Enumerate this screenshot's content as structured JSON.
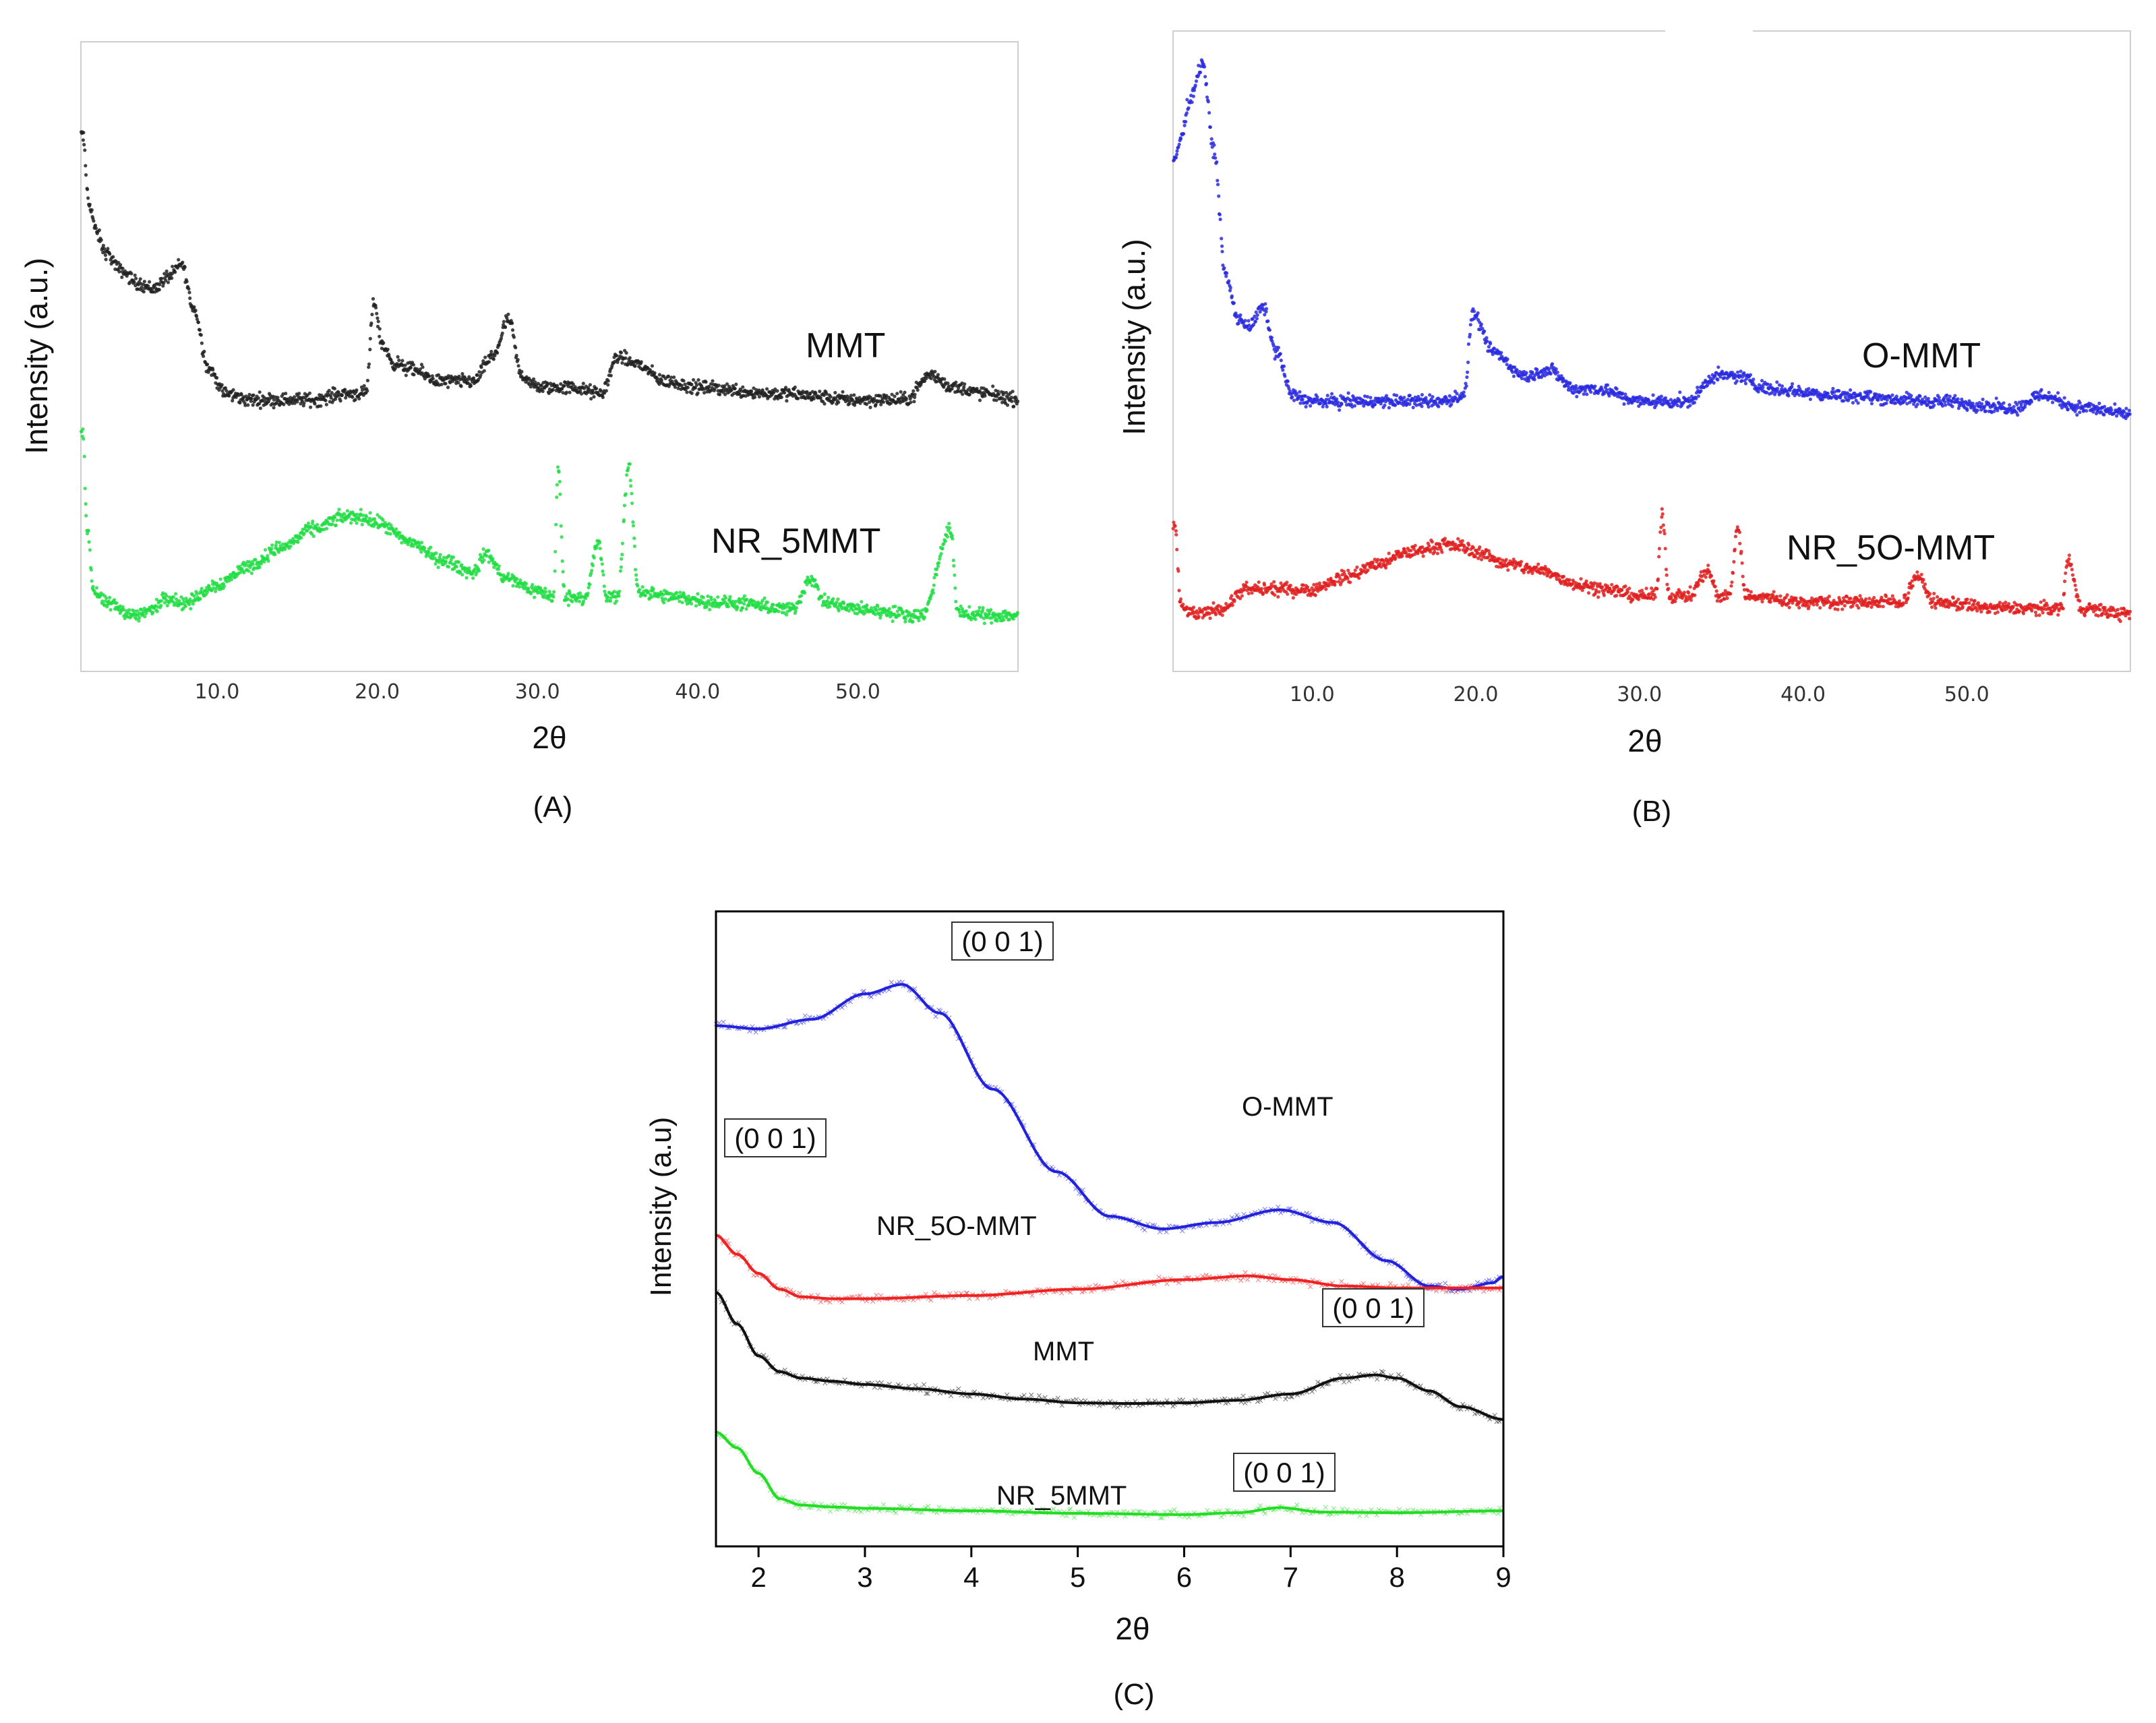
{
  "chart_data": [
    {
      "type": "scatter",
      "panel_label": "(A)",
      "xlabel": "2θ",
      "ylabel": "Intensity (a.u.)",
      "xlim": [
        1.5,
        60
      ],
      "ylim": [
        0,
        100
      ],
      "x_ticks": [
        "10.0",
        "20.0",
        "30.0",
        "40.0",
        "50.0"
      ],
      "series": [
        {
          "name": "MMT",
          "color": "#222222",
          "x": [
            1.6,
            2.0,
            2.5,
            3.0,
            4.0,
            5.0,
            6.0,
            7.0,
            7.8,
            8.5,
            9.5,
            10.5,
            12,
            14,
            16,
            18,
            19.3,
            19.8,
            20.3,
            21,
            22,
            24,
            26,
            27.2,
            28.2,
            29,
            30,
            32,
            34,
            35,
            36,
            38,
            40,
            45,
            50,
            53,
            54.5,
            56,
            58,
            60
          ],
          "y": [
            86,
            75,
            70,
            67,
            64,
            62,
            61,
            63,
            65,
            58,
            48,
            44,
            43,
            43,
            43,
            44,
            44,
            59,
            52,
            49,
            48,
            46,
            46,
            50,
            56,
            47,
            45,
            45,
            44,
            50,
            49,
            46,
            45,
            44,
            43,
            43,
            47,
            45,
            44,
            43
          ]
        },
        {
          "name": "NR_5MMT",
          "color": "#22dd44",
          "x": [
            1.6,
            1.9,
            2.3,
            3,
            5,
            6,
            6.8,
            8,
            10,
            12,
            14,
            16,
            18,
            19,
            20,
            22,
            24,
            26,
            26.8,
            28,
            30,
            31.0,
            31.3,
            31.7,
            33,
            33.8,
            34.3,
            35,
            35.7,
            36.3,
            38,
            42,
            46,
            47,
            48,
            50,
            54,
            55.8,
            56.2,
            57,
            60
          ],
          "y": [
            38,
            22,
            12,
            10,
            8,
            9,
            11,
            10,
            13,
            16,
            19,
            22,
            24,
            24,
            23,
            20,
            17,
            15,
            18,
            14,
            12,
            11,
            32,
            11,
            11,
            20,
            11,
            11,
            32,
            12,
            11,
            10,
            9,
            14,
            10,
            9,
            8,
            22,
            9,
            8,
            8
          ]
        }
      ]
    },
    {
      "type": "scatter",
      "panel_label": "(B)",
      "xlabel": "2θ",
      "ylabel": "Intensity (a.u.)",
      "xlim": [
        1.5,
        60
      ],
      "ylim": [
        0,
        100
      ],
      "x_ticks": [
        "10.0",
        "20.0",
        "30.0",
        "40.0",
        "50.0"
      ],
      "series": [
        {
          "name": "O-MMT",
          "color": "#2a2ae0",
          "x": [
            1.5,
            2.0,
            2.5,
            3.3,
            4.0,
            4.7,
            5.5,
            6.2,
            7.0,
            7.8,
            8.8,
            10,
            14,
            18,
            19.3,
            19.8,
            21,
            23,
            24.5,
            26,
            27.5,
            30,
            33,
            34.6,
            36,
            38,
            42,
            48,
            53,
            54.5,
            57,
            60
          ],
          "y": [
            80,
            84,
            90,
            96,
            82,
            62,
            55,
            54,
            57,
            50,
            43,
            42,
            42,
            42,
            43,
            56,
            50,
            46,
            47,
            44,
            44,
            42,
            42,
            46,
            46,
            44,
            43,
            42,
            41,
            43,
            41,
            40
          ]
        },
        {
          "name": "NR_5O-MMT",
          "color": "#e02020",
          "x": [
            1.6,
            2.0,
            3.0,
            4.5,
            6.0,
            8,
            10,
            12,
            14,
            16,
            18,
            19,
            20,
            22,
            24,
            26,
            28,
            30,
            31.0,
            31.4,
            31.8,
            33,
            34.2,
            34.8,
            35.5,
            36.0,
            36.5,
            40,
            46,
            47,
            48,
            52,
            55.8,
            56.2,
            57,
            60
          ],
          "y": [
            22,
            9,
            8,
            9,
            12,
            12,
            12,
            14,
            16,
            18,
            19,
            19,
            18,
            16,
            15,
            13,
            12,
            11,
            11,
            24,
            11,
            11,
            15,
            11,
            11,
            22,
            11,
            10,
            10,
            14,
            10,
            9,
            9,
            17,
            9,
            8
          ]
        }
      ]
    },
    {
      "type": "line",
      "panel_label": "(C)",
      "xlabel": "2θ",
      "ylabel": "Intensity (a.u)",
      "xlim": [
        1.6,
        9
      ],
      "ylim": [
        0,
        100
      ],
      "x_ticks": [
        "2",
        "3",
        "4",
        "5",
        "6",
        "7",
        "8",
        "9"
      ],
      "peak_label": "(0 0 1)",
      "series": [
        {
          "name": "O-MMT",
          "color": "#2222dd",
          "x": [
            1.6,
            2.0,
            2.5,
            3.0,
            3.35,
            3.7,
            4.2,
            4.8,
            5.3,
            5.8,
            6.3,
            6.9,
            7.4,
            7.9,
            8.3,
            8.6,
            8.9,
            9.0
          ],
          "y": [
            82,
            81.5,
            83,
            87,
            88.5,
            84,
            72,
            59,
            52,
            50,
            51,
            53,
            51,
            45,
            41,
            40.5,
            41.5,
            42.5
          ]
        },
        {
          "name": "NR_5O-MMT",
          "color": "#ee2222",
          "x": [
            1.6,
            1.8,
            2.0,
            2.2,
            2.4,
            2.7,
            3.0,
            4.0,
            5.0,
            6.0,
            6.6,
            7.0,
            7.5,
            8.0,
            9.0
          ],
          "y": [
            49,
            46,
            43,
            40.5,
            39.3,
            39,
            39,
            39.5,
            40.5,
            42,
            42.6,
            42,
            41,
            40.7,
            40.7
          ]
        },
        {
          "name": "MMT",
          "color": "#111111",
          "x": [
            1.6,
            1.8,
            2.0,
            2.2,
            2.4,
            2.7,
            3.0,
            3.5,
            4.0,
            4.5,
            5.0,
            5.5,
            6.0,
            6.5,
            7.0,
            7.5,
            7.8,
            8.0,
            8.3,
            8.6,
            9.0
          ],
          "y": [
            40,
            35,
            30,
            27.5,
            26.5,
            26,
            25.5,
            24.8,
            24,
            23.2,
            22.6,
            22.5,
            22.6,
            23,
            24,
            26.5,
            27,
            26.5,
            24.5,
            22,
            20
          ]
        },
        {
          "name": "NR_5MMT",
          "color": "#22dd22",
          "x": [
            1.6,
            1.8,
            2.0,
            2.2,
            2.4,
            2.7,
            3.0,
            4.0,
            5.0,
            6.0,
            6.5,
            6.9,
            7.3,
            8.0,
            9.0
          ],
          "y": [
            18,
            15.5,
            11.5,
            7.5,
            6.5,
            6.2,
            6.0,
            5.6,
            5.2,
            5.0,
            5.3,
            6.1,
            5.4,
            5.3,
            5.6
          ]
        }
      ]
    }
  ]
}
